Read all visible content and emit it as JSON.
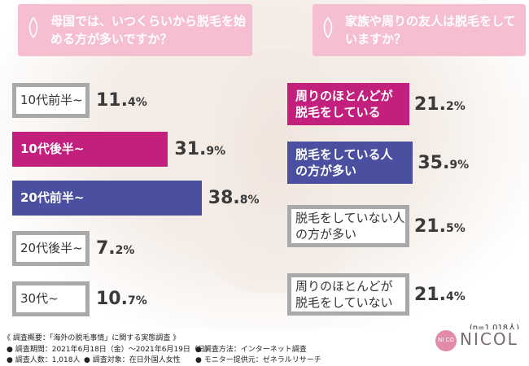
{
  "q1": {
    "title": "母国では、いつくらいから脱毛を始める方が多いですか？"
  },
  "q2": {
    "title": "家族や周りの友人は脱毛をしていますか？"
  },
  "chart_data": [
    {
      "type": "bar",
      "title": "母国では、いつくらいから脱毛を始める方が多いですか？",
      "categories": [
        "10代前半~",
        "10代後半~",
        "20代前半~",
        "20代後半~",
        "30代~"
      ],
      "values": [
        11.4,
        31.9,
        38.8,
        7.2,
        10.7
      ],
      "unit": "%",
      "colors": [
        "#a9a9a9",
        "#c2207c",
        "#4a4f9f",
        "#a9a9a9",
        "#a9a9a9"
      ]
    },
    {
      "type": "bar",
      "title": "家族や周りの友人は脱毛をしていますか？",
      "categories": [
        "周りのほとんどが脱毛をしている",
        "脱毛をしている人の方が多い",
        "脱毛をしていない人の方が多い",
        "周りのほとんどが脱毛をしていない"
      ],
      "values": [
        21.2,
        35.9,
        21.5,
        21.4
      ],
      "unit": "%",
      "colors": [
        "#c2207c",
        "#4a4f9f",
        "#a9a9a9",
        "#a9a9a9"
      ]
    }
  ],
  "right_labels": [
    [
      "周りのほとんどが",
      "脱毛をしている"
    ],
    [
      "脱毛をしている人",
      "の方が多い"
    ],
    [
      "脱毛をしていない人",
      "の方が多い"
    ],
    [
      "周りのほとんどが",
      "脱毛をしていない"
    ]
  ],
  "respondents": "(n=1,018人)",
  "footer": {
    "line1": "《 調査概要：「海外の脱毛事情」に関する実態調査 》",
    "line2a": "● 調査期間：2021年6月18日（金）〜2021年6月19日（日）",
    "line2b": "● 調査方法：インターネット調査",
    "line3a": "● 調査人数：1,018人",
    "line3b": "● 調査対象：在日外国人女性",
    "line3c": "● モニター提供元：ゼネラルリサーチ"
  },
  "logo": {
    "name": "NICOL",
    "badge": "NI CO"
  }
}
